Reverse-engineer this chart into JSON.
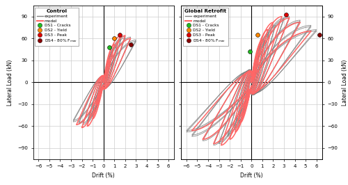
{
  "title_left": "Control",
  "title_right": "Global Retrofit",
  "xlabel": "Drift (%)",
  "ylabel_left": "Lateral Load (kN)",
  "ylabel_right": "Lateral Load (kN)",
  "xlim": [
    -6.5,
    6.5
  ],
  "ylim": [
    -105,
    105
  ],
  "xticks": [
    -6,
    -5,
    -4,
    -3,
    -2,
    -1,
    0,
    1,
    2,
    3,
    4,
    5,
    6
  ],
  "yticks": [
    -90,
    -60,
    -30,
    0,
    30,
    60,
    90
  ],
  "ds_colors": [
    "#22bb22",
    "#ff8800",
    "#dd0000",
    "#880000"
  ],
  "exp_color": "#808080",
  "model_color": "#ff6666",
  "background_color": "#ffffff",
  "grid_color": "#cccccc",
  "ctrl_ds": [
    [
      0.5,
      48
    ],
    [
      1.0,
      60
    ],
    [
      1.5,
      65
    ],
    [
      2.5,
      52
    ]
  ],
  "ret_ds": [
    [
      -0.15,
      42
    ],
    [
      0.55,
      65
    ],
    [
      3.2,
      93
    ],
    [
      6.3,
      65
    ]
  ]
}
